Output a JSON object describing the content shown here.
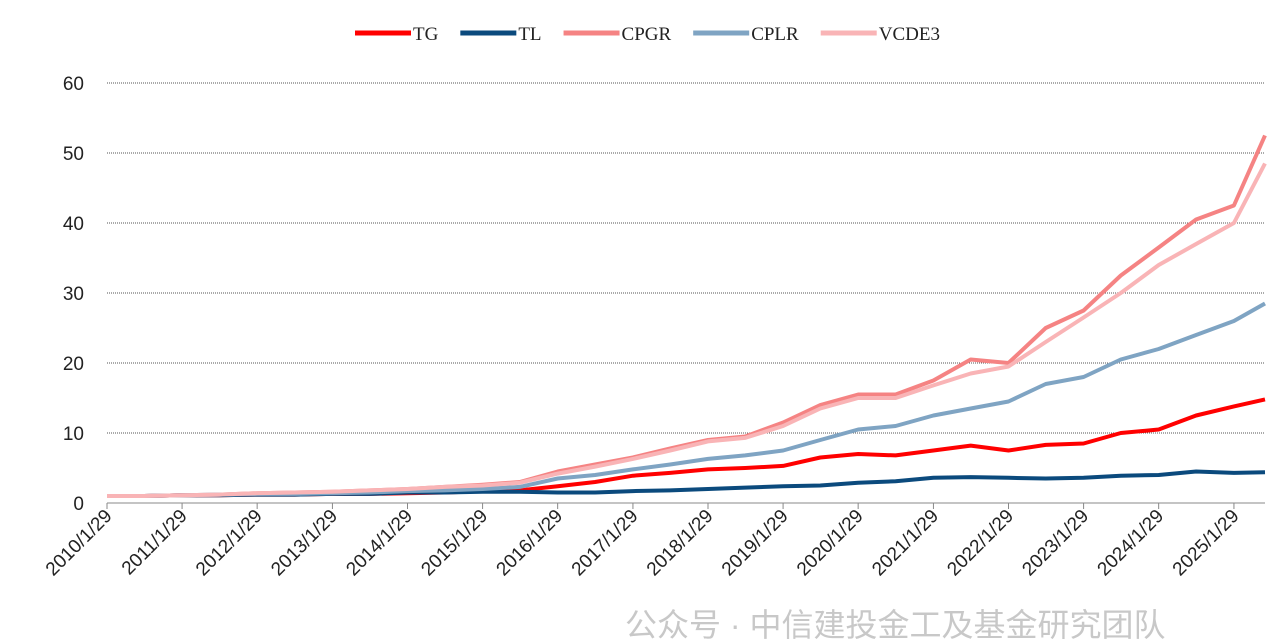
{
  "chart_data": {
    "type": "line",
    "x": [
      "2010/1/29",
      "2010/7/29",
      "2011/1/29",
      "2011/7/29",
      "2012/1/29",
      "2012/7/29",
      "2013/1/29",
      "2013/7/29",
      "2014/1/29",
      "2014/7/29",
      "2015/1/29",
      "2015/7/29",
      "2016/1/29",
      "2016/7/29",
      "2017/1/29",
      "2017/7/29",
      "2018/1/29",
      "2018/7/29",
      "2019/1/29",
      "2019/7/29",
      "2020/1/29",
      "2020/7/29",
      "2021/1/29",
      "2021/7/29",
      "2022/1/29",
      "2022/7/29",
      "2023/1/29",
      "2023/7/29",
      "2024/1/29",
      "2024/7/29",
      "2025/1/29",
      "2025/6/29"
    ],
    "series": [
      {
        "name": "TG",
        "color": "#ff0000",
        "values": [
          1,
          1,
          1.1,
          1.1,
          1.2,
          1.2,
          1.3,
          1.3,
          1.4,
          1.5,
          1.7,
          1.8,
          2.4,
          3.0,
          3.9,
          4.3,
          4.8,
          5.0,
          5.3,
          6.5,
          7.0,
          6.8,
          7.5,
          8.2,
          7.5,
          8.3,
          8.5,
          10.0,
          10.5,
          12.5,
          13.8,
          14.8
        ]
      },
      {
        "name": "TL",
        "color": "#0b4a7d",
        "values": [
          1,
          1,
          1.1,
          1.1,
          1.2,
          1.2,
          1.3,
          1.3,
          1.5,
          1.5,
          1.6,
          1.6,
          1.5,
          1.5,
          1.7,
          1.8,
          2.0,
          2.2,
          2.4,
          2.5,
          2.9,
          3.1,
          3.6,
          3.7,
          3.6,
          3.5,
          3.6,
          3.9,
          4.0,
          4.5,
          4.3,
          4.4
        ]
      },
      {
        "name": "CPGR",
        "color": "#f58383",
        "values": [
          1,
          1,
          1.1,
          1.2,
          1.4,
          1.5,
          1.6,
          1.8,
          2.0,
          2.3,
          2.6,
          3.0,
          4.5,
          5.5,
          6.5,
          7.8,
          9.0,
          9.5,
          11.5,
          14.0,
          15.5,
          15.5,
          17.5,
          20.5,
          20.0,
          25,
          27.5,
          32.5,
          36.5,
          40.5,
          42.5,
          52.5
        ]
      },
      {
        "name": "CPLR",
        "color": "#7fa4c3",
        "values": [
          1,
          1,
          1.1,
          1.2,
          1.3,
          1.3,
          1.4,
          1.5,
          1.7,
          1.8,
          2.0,
          2.3,
          3.5,
          4.0,
          4.8,
          5.5,
          6.3,
          6.8,
          7.5,
          9.0,
          10.5,
          11.0,
          12.5,
          13.5,
          14.5,
          17.0,
          18.0,
          20.5,
          22.0,
          24.0,
          26.0,
          28.5
        ]
      },
      {
        "name": "VCDE3",
        "color": "#f9b4b6",
        "values": [
          1,
          1,
          1.1,
          1.2,
          1.4,
          1.5,
          1.6,
          1.8,
          2.0,
          2.3,
          2.5,
          2.9,
          4.2,
          5.2,
          6.3,
          7.5,
          8.8,
          9.3,
          11.0,
          13.5,
          15.0,
          15.0,
          16.8,
          18.5,
          19.5,
          23,
          26.5,
          30,
          34,
          37,
          40,
          48.5
        ]
      }
    ],
    "xlim": [
      "2010/1/29",
      "2025/6/29"
    ],
    "xticks": [
      "2010/1/29",
      "2011/1/29",
      "2012/1/29",
      "2013/1/29",
      "2014/1/29",
      "2015/1/29",
      "2016/1/29",
      "2017/1/29",
      "2018/1/29",
      "2019/1/29",
      "2020/1/29",
      "2021/1/29",
      "2022/1/29",
      "2023/1/29",
      "2024/1/29",
      "2025/1/29"
    ],
    "ylim": [
      0,
      60
    ],
    "yticks": [
      0,
      10,
      20,
      30,
      40,
      50,
      60
    ],
    "grid": true,
    "legend": "top",
    "watermark": "公众号 · 中信建投金工及基金研究团队"
  }
}
